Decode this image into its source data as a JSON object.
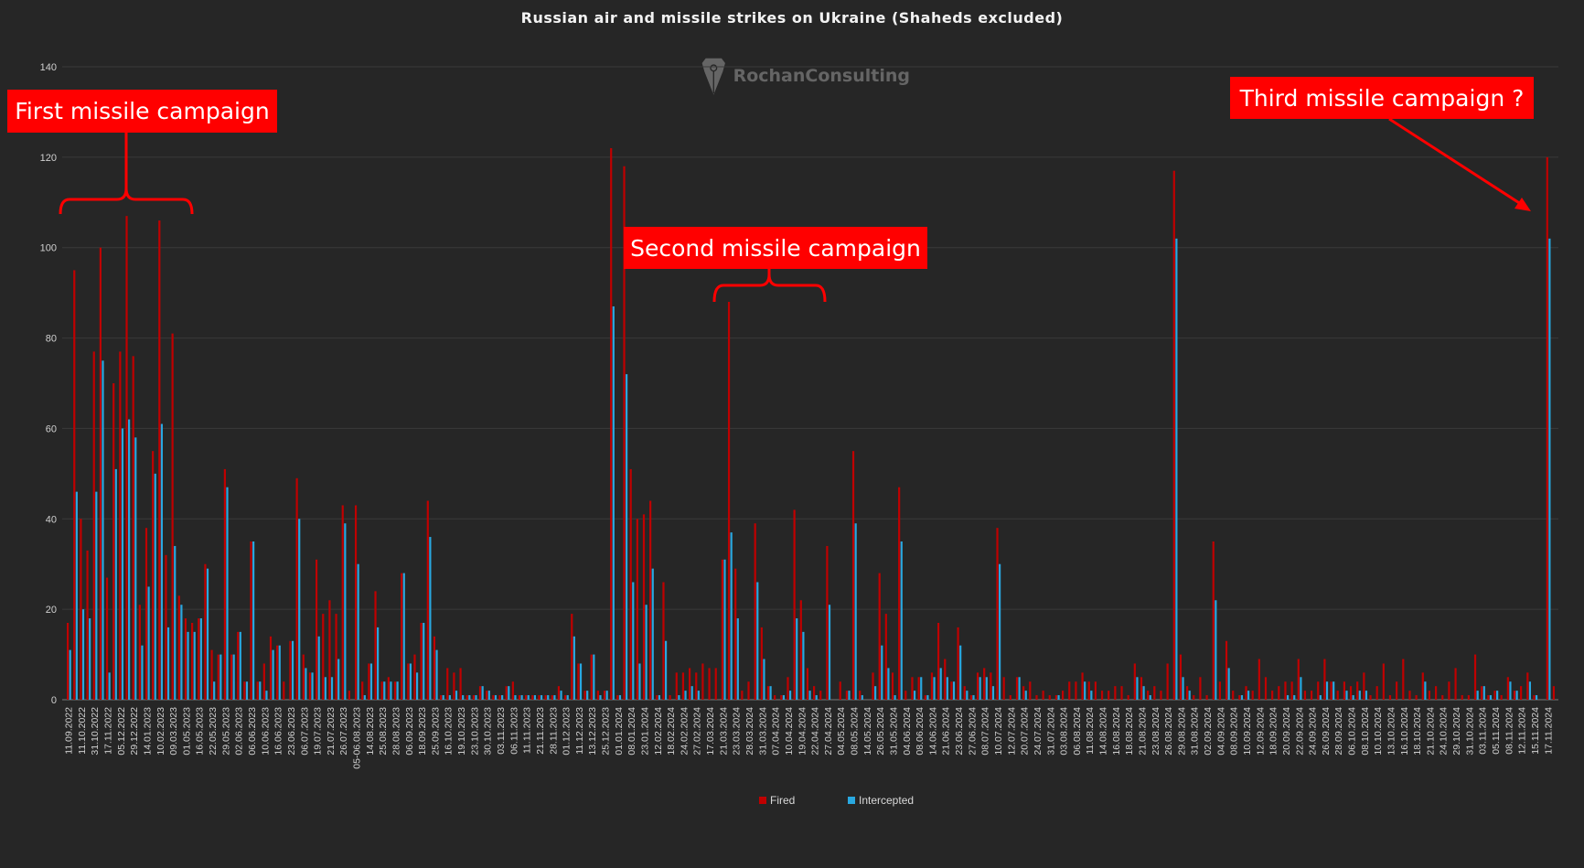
{
  "chart_data": {
    "type": "bar",
    "title": "Russian air and missile strikes on Ukraine (Shaheds excluded)",
    "xlabel": "",
    "ylabel": "",
    "ylim": [
      0,
      140
    ],
    "yticks": [
      0,
      20,
      40,
      60,
      80,
      100,
      120,
      140
    ],
    "grid": true,
    "legend_placement": "bottom",
    "tick_labels": [
      "11.09.2022",
      "11.10.2022",
      "31.10.2022",
      "17.11.2022",
      "05.12.2022",
      "29.12.2022",
      "14.01.2023",
      "10.02.2023",
      "09.03.2023",
      "01.05.2023",
      "16.05.2023",
      "22.05.2023",
      "29.05.2023",
      "02.06.2023",
      "06.06.2023",
      "10.06.2023",
      "16.06.2023",
      "23.06.2023",
      "06.07.2023",
      "19.07.2023",
      "21.07.2023",
      "26.07.2023",
      "05-06.08.2023",
      "14.08.2023",
      "25.08.2023",
      "28.08.2023",
      "06.09.2023",
      "18.09.2023",
      "25.09.2023",
      "16.10.2023",
      "19.10.2023",
      "23.10.2023",
      "30.10.2023",
      "03.11.2023",
      "06.11.2023",
      "11.11.2023",
      "21.11.2023",
      "28.11.2023",
      "01.12.2023",
      "11.12.2023",
      "13.12.2023",
      "25.12.2023",
      "01.01.2024",
      "08.01.2024",
      "23.01.2024",
      "12.02.2024",
      "18.02.2024",
      "24.02.2024",
      "27.02.2024",
      "17.03.2024",
      "21.03.2024",
      "23.03.2024",
      "28.03.2024",
      "31.03.2024",
      "07.04.2024",
      "10.04.2024",
      "19.04.2024",
      "22.04.2024",
      "27.04.2024",
      "04.05.2024",
      "08.05.2024",
      "14.05.2024",
      "26.05.2024",
      "31.05.2024",
      "04.06.2024",
      "08.06.2024",
      "14.06.2024",
      "21.06.2024",
      "23.06.2024",
      "27.06.2024",
      "08.07.2024",
      "10.07.2024",
      "12.07.2024",
      "20.07.2024",
      "24.07.2024",
      "31.07.2024",
      "03.08.2024",
      "06.08.2024",
      "11.08.2024",
      "14.08.2024",
      "16.08.2024",
      "18.08.2024",
      "21.08.2024",
      "23.08.2024",
      "26.08.2024",
      "29.08.2024",
      "31.08.2024",
      "02.09.2024",
      "04.09.2024",
      "08.09.2024",
      "10.09.2024",
      "12.09.2024",
      "18.09.2024",
      "20.09.2024",
      "22.09.2024",
      "24.09.2024",
      "26.09.2024",
      "28.09.2024",
      "06.10.2024",
      "08.10.2024",
      "10.10.2024",
      "13.10.2024",
      "16.10.2024",
      "18.10.2024",
      "21.10.2024",
      "24.10.2024",
      "29.10.2024",
      "31.10.2024",
      "03.11.2024",
      "05.11.2024",
      "08.11.2024",
      "12.11.2024",
      "15.11.2024",
      "17.11.2024"
    ],
    "tick_every": 2,
    "series": [
      {
        "name": "Fired",
        "color": "#c00000",
        "values": [
          17,
          95,
          40,
          33,
          77,
          100,
          27,
          70,
          77,
          107,
          76,
          21,
          38,
          55,
          106,
          32,
          81,
          23,
          18,
          17,
          18,
          30,
          11,
          10,
          51,
          10,
          15,
          4,
          35,
          4,
          8,
          14,
          12,
          4,
          13,
          49,
          10,
          6,
          31,
          19,
          22,
          19,
          43,
          2,
          43,
          4,
          8,
          24,
          4,
          5,
          4,
          28,
          8,
          10,
          17,
          44,
          14,
          1,
          7,
          6,
          7,
          1,
          1,
          3,
          2,
          1,
          1,
          3,
          4,
          1,
          1,
          1,
          1,
          1,
          1,
          3,
          1,
          19,
          8,
          2,
          10,
          2,
          2,
          122,
          1,
          118,
          51,
          40,
          41,
          44,
          1,
          26,
          1,
          6,
          6,
          7,
          6,
          8,
          7,
          7,
          31,
          88,
          29,
          2,
          4,
          39,
          16,
          3,
          1,
          1,
          5,
          42,
          22,
          7,
          3,
          2,
          34,
          0,
          4,
          2,
          55,
          2,
          0,
          6,
          28,
          19,
          6,
          47,
          2,
          5,
          5,
          1,
          6,
          17,
          9,
          4,
          16,
          3,
          1,
          6,
          7,
          6,
          38,
          5,
          1,
          5,
          3,
          4,
          1,
          2,
          1,
          1,
          2,
          4,
          4,
          6,
          4,
          4,
          2,
          2,
          3,
          3,
          1,
          8,
          5,
          2,
          3,
          2,
          8,
          117,
          10,
          3,
          1,
          5,
          1,
          35,
          4,
          13,
          2,
          1,
          3,
          2,
          9,
          5,
          2,
          3,
          4,
          4,
          9,
          2,
          2,
          4,
          9,
          4,
          2,
          4,
          3,
          4,
          6,
          1,
          3,
          8,
          1,
          4,
          9,
          2,
          1,
          6,
          2,
          3,
          1,
          4,
          7,
          1,
          1,
          10,
          3,
          1,
          2,
          1,
          5,
          2,
          3,
          6,
          1,
          0,
          120,
          3
        ]
      },
      {
        "name": "Intercepted",
        "color": "#29a8e0",
        "values": [
          11,
          46,
          20,
          18,
          46,
          75,
          6,
          51,
          60,
          62,
          58,
          12,
          25,
          50,
          61,
          16,
          34,
          21,
          15,
          15,
          18,
          29,
          4,
          10,
          47,
          10,
          15,
          4,
          35,
          4,
          2,
          11,
          12,
          0,
          13,
          40,
          7,
          6,
          14,
          5,
          5,
          9,
          39,
          0,
          30,
          1,
          8,
          16,
          4,
          4,
          4,
          28,
          8,
          6,
          17,
          36,
          11,
          1,
          1,
          2,
          1,
          1,
          1,
          3,
          2,
          1,
          1,
          3,
          1,
          1,
          1,
          1,
          1,
          1,
          1,
          2,
          1,
          14,
          8,
          2,
          10,
          1,
          2,
          87,
          1,
          72,
          26,
          8,
          21,
          29,
          1,
          13,
          0,
          1,
          2,
          3,
          2,
          0,
          0,
          0,
          31,
          37,
          18,
          0,
          0,
          26,
          9,
          3,
          0,
          1,
          2,
          18,
          15,
          2,
          1,
          0,
          21,
          0,
          0,
          2,
          39,
          1,
          0,
          3,
          12,
          7,
          1,
          35,
          0,
          2,
          5,
          1,
          5,
          7,
          5,
          4,
          12,
          2,
          1,
          5,
          5,
          3,
          30,
          0,
          0,
          5,
          2,
          0,
          0,
          0,
          0,
          1,
          0,
          0,
          0,
          4,
          2,
          0,
          0,
          0,
          0,
          0,
          0,
          5,
          3,
          1,
          0,
          0,
          0,
          102,
          5,
          2,
          0,
          0,
          0,
          22,
          0,
          7,
          0,
          1,
          2,
          0,
          0,
          0,
          0,
          0,
          1,
          1,
          5,
          0,
          0,
          1,
          4,
          4,
          0,
          2,
          1,
          2,
          2,
          0,
          0,
          0,
          0,
          0,
          0,
          0,
          0,
          4,
          0,
          0,
          0,
          0,
          0,
          0,
          0,
          2,
          3,
          1,
          2,
          0,
          4,
          2,
          0,
          4,
          1,
          0,
          102,
          0
        ]
      }
    ],
    "annotations": {
      "first": "First missile campaign",
      "second": "Second missile campaign",
      "third": "Third missile campaign ?"
    },
    "annotation_color": "#ff0000"
  },
  "watermark": {
    "text": "RochanConsulting"
  },
  "colors": {
    "background": "#262626",
    "grid": "#3a3a3a"
  }
}
